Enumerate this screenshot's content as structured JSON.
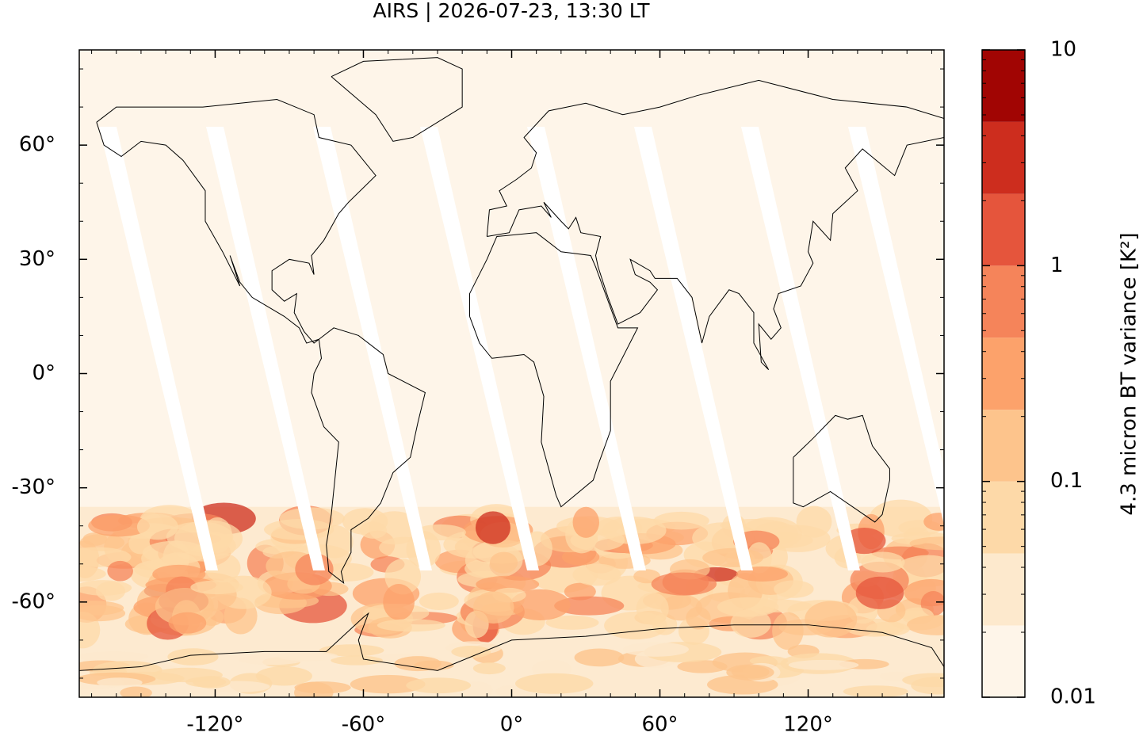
{
  "chart_data": {
    "type": "map",
    "title": "AIRS | 2026-07-23, 13:30 LT",
    "xlim": [
      -175,
      175
    ],
    "ylim": [
      -85,
      85
    ],
    "xticks": [
      {
        "value": -120,
        "label": "-120°"
      },
      {
        "value": -60,
        "label": "-60°"
      },
      {
        "value": 0,
        "label": "0°"
      },
      {
        "value": 60,
        "label": "60°"
      },
      {
        "value": 120,
        "label": "120°"
      }
    ],
    "yticks": [
      {
        "value": -60,
        "label": "-60°"
      },
      {
        "value": -30,
        "label": "-30°"
      },
      {
        "value": 0,
        "label": "0°"
      },
      {
        "value": 30,
        "label": "30°"
      },
      {
        "value": 60,
        "label": "60°"
      }
    ],
    "colorbar": {
      "label": "4.3 micron BT variance [K²]",
      "log": true,
      "lim": [
        0.01,
        10
      ],
      "ticks": [
        0.01,
        0.1,
        1,
        10
      ],
      "levels": [
        0.01,
        0.0215,
        0.0464,
        0.1,
        0.215,
        0.464,
        1,
        2.15,
        4.64,
        10
      ],
      "colors": [
        "#fef5e9",
        "#fde9cd",
        "#fdd9a8",
        "#fdc48c",
        "#fca26b",
        "#f5845a",
        "#e5553c",
        "#cd2d1e",
        "#a10503"
      ]
    }
  }
}
